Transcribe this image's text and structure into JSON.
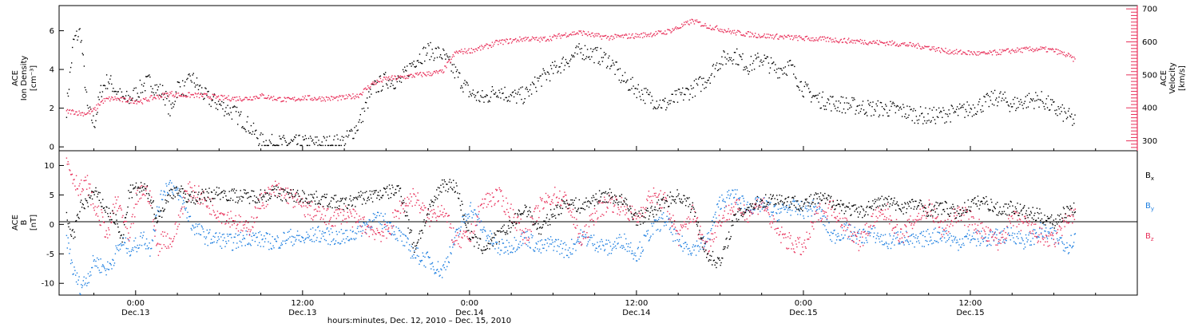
{
  "chart_data": [
    {
      "type": "scatter",
      "panel": "top",
      "ylabel_left": [
        "ACE",
        "Ion Density",
        "[cm⁻³]"
      ],
      "ylabel_right": [
        "ACE",
        "Velocity",
        "[km/s]"
      ],
      "left_axis": {
        "ylim": [
          -0.2,
          7.3
        ],
        "ticks": [
          "0",
          "2",
          "4",
          "6"
        ]
      },
      "right_axis": {
        "ylim": [
          270,
          710
        ],
        "ticks": [
          "300",
          "400",
          "500",
          "600",
          "700"
        ]
      },
      "series": [
        {
          "axis": "left",
          "color": "#000000",
          "x": [
            -5,
            -4.5,
            -4,
            -3.5,
            -3,
            -2.5,
            -2,
            -1.5,
            -1,
            -0.5,
            0,
            0.5,
            1,
            1.5,
            2,
            2.5,
            3,
            3.5,
            4,
            5,
            6,
            7,
            8,
            9,
            10,
            11,
            12,
            13,
            14,
            15,
            16,
            17,
            18,
            19,
            20,
            21,
            22,
            23,
            24,
            25,
            26,
            27,
            28,
            29,
            30,
            31,
            32,
            33,
            34,
            35,
            36,
            37,
            38,
            39,
            40,
            41,
            42,
            43,
            44,
            45,
            46,
            47,
            48,
            49,
            50,
            51,
            52,
            53,
            54,
            55,
            56,
            57,
            58,
            59,
            60,
            61,
            62,
            63,
            64,
            65,
            66,
            67,
            67.5
          ],
          "y": [
            2.0,
            5.5,
            6.0,
            2.0,
            1.2,
            3.0,
            3.5,
            3.0,
            2.5,
            2.5,
            2.8,
            3.2,
            3.4,
            3.0,
            2.8,
            1.8,
            3.2,
            3.0,
            3.6,
            2.6,
            2.2,
            1.8,
            1.2,
            0.3,
            0.2,
            0.2,
            0.2,
            0.2,
            0.2,
            0.3,
            1.2,
            3.0,
            3.5,
            3.4,
            4.5,
            5.0,
            4.8,
            3.8,
            2.8,
            2.5,
            3.0,
            2.6,
            2.7,
            3.5,
            4.0,
            4.5,
            5.0,
            4.8,
            4.5,
            3.5,
            3.0,
            2.5,
            2.2,
            2.6,
            3.0,
            3.5,
            4.5,
            4.8,
            4.2,
            4.6,
            4.0,
            4.2,
            3.0,
            2.5,
            2.3,
            2.2,
            2.1,
            2.0,
            2.0,
            1.9,
            1.7,
            1.6,
            1.7,
            1.8,
            2.0,
            2.3,
            2.6,
            2.2,
            2.4,
            2.5,
            2.0,
            1.6,
            1.3
          ]
        },
        {
          "axis": "right",
          "color": "#e8305a",
          "x": [
            -5,
            -4.5,
            -4,
            -3.5,
            -3,
            -2.5,
            -2,
            -1.5,
            -1,
            -0.5,
            0,
            0.5,
            1,
            1.5,
            2,
            2.5,
            3,
            3.5,
            4,
            5,
            6,
            7,
            8,
            9,
            10,
            11,
            12,
            13,
            14,
            15,
            16,
            17,
            18,
            19,
            20,
            21,
            22,
            23,
            24,
            25,
            26,
            27,
            28,
            29,
            30,
            31,
            32,
            33,
            34,
            35,
            36,
            37,
            38,
            39,
            40,
            41,
            42,
            43,
            44,
            45,
            46,
            47,
            48,
            49,
            50,
            51,
            52,
            53,
            54,
            55,
            56,
            57,
            58,
            59,
            60,
            61,
            62,
            63,
            64,
            65,
            66,
            67,
            67.5
          ],
          "y": [
            390,
            390,
            385,
            385,
            395,
            420,
            428,
            430,
            425,
            425,
            422,
            422,
            430,
            435,
            440,
            445,
            440,
            440,
            440,
            438,
            432,
            430,
            430,
            438,
            430,
            425,
            432,
            430,
            430,
            432,
            440,
            475,
            490,
            493,
            500,
            505,
            510,
            570,
            575,
            585,
            600,
            605,
            612,
            608,
            615,
            625,
            630,
            620,
            615,
            618,
            620,
            625,
            630,
            645,
            665,
            650,
            640,
            630,
            625,
            620,
            618,
            615,
            612,
            610,
            608,
            605,
            603,
            600,
            598,
            595,
            590,
            585,
            575,
            570,
            568,
            565,
            570,
            575,
            578,
            580,
            575,
            560,
            545
          ]
        }
      ]
    },
    {
      "type": "scatter",
      "panel": "bottom",
      "ylabel_left": [
        "ACE",
        "B",
        "[nT]"
      ],
      "ylim": [
        -12,
        12.5
      ],
      "ticks": [
        "-10",
        "-5",
        "0",
        "5",
        "10"
      ],
      "series": [
        {
          "name": "Bx",
          "color": "#000000",
          "x": [
            -5,
            -4.5,
            -4,
            -3.5,
            -3,
            -2.5,
            -2,
            -1.5,
            -1,
            -0.5,
            0,
            0.5,
            1,
            1.5,
            2,
            2.5,
            3,
            3.5,
            4,
            5,
            6,
            7,
            8,
            9,
            10,
            11,
            12,
            13,
            14,
            15,
            16,
            17,
            18,
            19,
            20,
            21,
            22,
            23,
            24,
            25,
            26,
            27,
            28,
            29,
            30,
            31,
            32,
            33,
            34,
            35,
            36,
            37,
            38,
            39,
            40,
            41,
            42,
            43,
            44,
            45,
            46,
            47,
            48,
            49,
            50,
            51,
            52,
            53,
            54,
            55,
            56,
            57,
            58,
            59,
            60,
            61,
            62,
            63,
            64,
            65,
            66,
            67,
            67.5
          ],
          "y": [
            1.0,
            -2.0,
            3.0,
            4.0,
            5.5,
            4.0,
            2.0,
            1.0,
            -3.0,
            5.5,
            6.0,
            6.2,
            5.0,
            1.0,
            3.0,
            5.5,
            6.0,
            5.0,
            4.5,
            5.0,
            5.5,
            5.0,
            4.8,
            5.0,
            5.5,
            5.0,
            4.8,
            4.5,
            4.0,
            3.5,
            4.5,
            5.0,
            5.5,
            6.0,
            -4.0,
            2.0,
            7.0,
            6.5,
            -2.0,
            -4.0,
            -2.0,
            0.0,
            3.0,
            -1.0,
            2.0,
            4.0,
            3.0,
            4.5,
            5.0,
            4.0,
            1.0,
            2.0,
            4.0,
            5.0,
            3.0,
            -5.0,
            -6.5,
            1.0,
            3.0,
            4.0,
            4.5,
            4.0,
            3.5,
            4.5,
            4.0,
            3.0,
            2.0,
            3.5,
            4.0,
            3.0,
            3.5,
            2.5,
            3.0,
            2.0,
            3.5,
            4.0,
            2.5,
            3.0,
            2.0,
            1.5,
            0.5,
            2.5,
            3.0
          ]
        },
        {
          "name": "By",
          "color": "#1e7fe0",
          "x": [
            -5,
            -4.5,
            -4,
            -3.5,
            -3,
            -2.5,
            -2,
            -1.5,
            -1,
            -0.5,
            0,
            0.5,
            1,
            1.5,
            2,
            2.5,
            3,
            3.5,
            4,
            5,
            6,
            7,
            8,
            9,
            10,
            11,
            12,
            13,
            14,
            15,
            16,
            17,
            18,
            19,
            20,
            21,
            22,
            23,
            24,
            25,
            26,
            27,
            28,
            29,
            30,
            31,
            32,
            33,
            34,
            35,
            36,
            37,
            38,
            39,
            40,
            41,
            42,
            43,
            44,
            45,
            46,
            47,
            48,
            49,
            50,
            51,
            52,
            53,
            54,
            55,
            56,
            57,
            58,
            59,
            60,
            61,
            62,
            63,
            64,
            65,
            66,
            67,
            67.5
          ],
          "y": [
            -2.0,
            -8.0,
            -10.5,
            -9.0,
            -6.0,
            -7.0,
            -7.5,
            -5.0,
            -3.0,
            -4.0,
            -3.5,
            -2.0,
            -4.0,
            2.0,
            6.0,
            7.0,
            5.0,
            3.0,
            0.0,
            -2.0,
            -2.5,
            -3.0,
            -2.0,
            -2.5,
            -3.0,
            -2.0,
            -2.5,
            -1.5,
            -2.0,
            -2.2,
            -1.0,
            1.0,
            0.5,
            -2.0,
            -5.0,
            -6.0,
            -8.0,
            -2.0,
            3.0,
            -1.0,
            -4.0,
            -3.5,
            -2.0,
            -4.0,
            -3.0,
            -4.5,
            -2.0,
            -3.0,
            -4.0,
            -2.5,
            -5.0,
            -1.0,
            1.0,
            -3.0,
            -4.0,
            -3.0,
            4.0,
            5.0,
            3.0,
            3.5,
            2.0,
            3.0,
            2.5,
            3.0,
            -2.0,
            -1.0,
            -2.0,
            -1.5,
            -3.0,
            -2.0,
            -3.0,
            -2.0,
            -1.5,
            -3.0,
            -2.0,
            -2.5,
            -2.0,
            -1.5,
            -3.0,
            -1.0,
            -2.0,
            -3.5,
            -2.0
          ]
        },
        {
          "name": "Bz",
          "color": "#e8305a",
          "x": [
            -5,
            -4.5,
            -4,
            -3.5,
            -3,
            -2.5,
            -2,
            -1.5,
            -1,
            -0.5,
            0,
            0.5,
            1,
            1.5,
            2,
            2.5,
            3,
            3.5,
            4,
            5,
            6,
            7,
            8,
            9,
            10,
            11,
            12,
            13,
            14,
            15,
            16,
            17,
            18,
            19,
            20,
            21,
            22,
            23,
            24,
            25,
            26,
            27,
            28,
            29,
            30,
            31,
            32,
            33,
            34,
            35,
            36,
            37,
            38,
            39,
            40,
            41,
            42,
            43,
            44,
            45,
            46,
            47,
            48,
            49,
            50,
            51,
            52,
            53,
            54,
            55,
            56,
            57,
            58,
            59,
            60,
            61,
            62,
            63,
            64,
            65,
            66,
            67,
            67.5
          ],
          "y": [
            11.0,
            8.0,
            6.0,
            7.0,
            3.0,
            1.0,
            -2.0,
            4.0,
            2.0,
            -3.0,
            4.0,
            6.0,
            5.0,
            -4.0,
            -2.0,
            -3.0,
            0.0,
            5.0,
            6.0,
            4.0,
            2.0,
            1.0,
            -1.0,
            4.0,
            6.0,
            5.0,
            3.0,
            2.0,
            1.0,
            2.0,
            0.5,
            -1.0,
            -1.5,
            3.0,
            5.0,
            1.0,
            3.0,
            -3.0,
            -2.0,
            4.0,
            5.0,
            2.0,
            -2.0,
            3.0,
            5.0,
            4.0,
            -3.0,
            2.0,
            4.0,
            3.0,
            1.0,
            5.0,
            4.0,
            -2.0,
            2.0,
            -4.0,
            1.0,
            3.0,
            2.0,
            4.0,
            -1.0,
            -3.0,
            -4.0,
            2.0,
            3.0,
            0.0,
            -3.0,
            1.0,
            2.0,
            -2.0,
            1.0,
            3.0,
            -1.0,
            2.0,
            1.0,
            -1.5,
            -3.0,
            1.0,
            0.0,
            -2.0,
            -3.0,
            1.5,
            1.5
          ]
        }
      ]
    }
  ],
  "legend": [
    {
      "label": "B",
      "sub": "x",
      "color": "#000000"
    },
    {
      "label": "B",
      "sub": "y",
      "color": "#1e7fe0"
    },
    {
      "label": "B",
      "sub": "z",
      "color": "#e8305a"
    }
  ],
  "x_axis": {
    "range_hours": [
      -5.5,
      72
    ],
    "ticks": [
      {
        "h": 0,
        "time": "0:00",
        "date": "Dec.13"
      },
      {
        "h": 12,
        "time": "12:00",
        "date": "Dec.13"
      },
      {
        "h": 24,
        "time": "0:00",
        "date": "Dec.14"
      },
      {
        "h": 36,
        "time": "12:00",
        "date": "Dec.14"
      },
      {
        "h": 48,
        "time": "0:00",
        "date": "Dec.15"
      },
      {
        "h": 60,
        "time": "12:00",
        "date": "Dec.15"
      }
    ],
    "title": "hours:minutes, Dec. 12, 2010 – Dec. 15, 2010"
  }
}
